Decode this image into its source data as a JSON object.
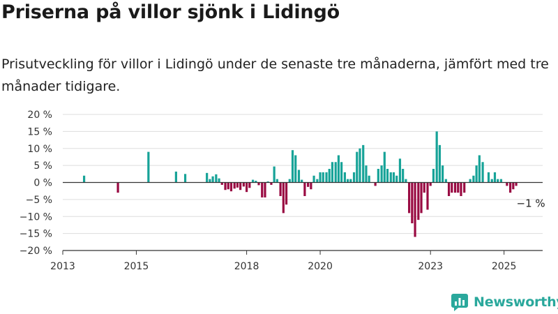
{
  "title": "Priserna på villor sjönk i Lidingö",
  "subtitle": "Prisutveckling för villor i Lidingö under de senaste tre månaderna, jämfört med tre månader tidigare.",
  "brand": {
    "name": "Newsworthy",
    "icon": "newsworthy-logo-icon",
    "color": "#2aa89c"
  },
  "chart_data": {
    "type": "bar",
    "title": "Priserna på villor sjönk i Lidingö",
    "subtitle": "Prisutveckling för villor i Lidingö under de senaste tre månaderna, jämfört med tre månader tidigare.",
    "ylabel": "",
    "xlabel": "",
    "ylim": [
      -20,
      20
    ],
    "xlim": [
      2013.0,
      2026.05
    ],
    "yticks": [
      20,
      15,
      10,
      5,
      0,
      -5,
      -10,
      -15,
      -20
    ],
    "ytick_labels": [
      "20 %",
      "15 %",
      "10 %",
      "5 %",
      "0 %",
      "−5 %",
      "−10 %",
      "−15 %",
      "−20 %"
    ],
    "xticks": [
      2013,
      2015,
      2018,
      2020,
      2023,
      2025
    ],
    "xtick_labels": [
      "2013",
      "2015",
      "2018",
      "2020",
      "2023",
      "2025"
    ],
    "grid": true,
    "colors": {
      "positive": "#17a398",
      "negative": "#990a42",
      "grid": "#dddddd",
      "axis": "#333333"
    },
    "annotation": {
      "text": "−1 %",
      "x": 2025.35,
      "y": -1
    },
    "x": [
      2013.58,
      2014.5,
      2015.33,
      2016.08,
      2016.33,
      2016.92,
      2017.0,
      2017.08,
      2017.17,
      2017.25,
      2017.33,
      2017.42,
      2017.5,
      2017.58,
      2017.67,
      2017.75,
      2017.83,
      2017.92,
      2018.0,
      2018.08,
      2018.17,
      2018.25,
      2018.33,
      2018.42,
      2018.5,
      2018.58,
      2018.67,
      2018.75,
      2018.83,
      2018.92,
      2019.0,
      2019.08,
      2019.17,
      2019.25,
      2019.33,
      2019.42,
      2019.5,
      2019.58,
      2019.67,
      2019.75,
      2019.83,
      2019.92,
      2020.0,
      2020.08,
      2020.17,
      2020.25,
      2020.33,
      2020.42,
      2020.5,
      2020.58,
      2020.67,
      2020.75,
      2020.83,
      2020.92,
      2021.0,
      2021.08,
      2021.17,
      2021.25,
      2021.33,
      2021.42,
      2021.5,
      2021.58,
      2021.67,
      2021.75,
      2021.83,
      2021.92,
      2022.0,
      2022.08,
      2022.17,
      2022.25,
      2022.33,
      2022.42,
      2022.5,
      2022.58,
      2022.67,
      2022.75,
      2022.83,
      2022.92,
      2023.0,
      2023.08,
      2023.17,
      2023.25,
      2023.33,
      2023.42,
      2023.5,
      2023.58,
      2023.67,
      2023.75,
      2023.83,
      2023.92,
      2024.0,
      2024.08,
      2024.17,
      2024.25,
      2024.33,
      2024.42,
      2024.5,
      2024.58,
      2024.67,
      2024.75,
      2024.83,
      2024.92,
      2025.0,
      2025.08,
      2025.17,
      2025.25,
      2025.33
    ],
    "values": [
      2,
      -3,
      9,
      3.2,
      2.5,
      2.8,
      1,
      1.8,
      2.4,
      1.2,
      -0.7,
      -2.2,
      -2,
      -2.6,
      -1.8,
      -1.5,
      -2.2,
      -1.2,
      -2.8,
      -1.6,
      0.8,
      0.5,
      -0.8,
      -4.4,
      -4.4,
      0.3,
      -0.7,
      4.7,
      1,
      -4,
      -9,
      -6.5,
      1,
      9.5,
      8,
      3.7,
      0.8,
      -4,
      -1.3,
      -2,
      2,
      1,
      3,
      3,
      3,
      4,
      6,
      6,
      8,
      6,
      3,
      1,
      1,
      3,
      9,
      10,
      11,
      5,
      2,
      0,
      -1,
      4,
      5,
      9,
      4,
      3,
      3,
      2,
      7,
      4,
      1,
      -9,
      -12,
      -16,
      -11,
      -9,
      -3,
      -8,
      -1,
      4,
      15,
      11,
      5,
      1,
      -4,
      -3,
      -3,
      -3,
      -4,
      -3,
      0,
      1,
      2,
      5,
      8,
      6,
      0,
      3,
      1,
      3,
      1,
      1,
      0,
      -1,
      -3,
      -2,
      -1
    ]
  }
}
